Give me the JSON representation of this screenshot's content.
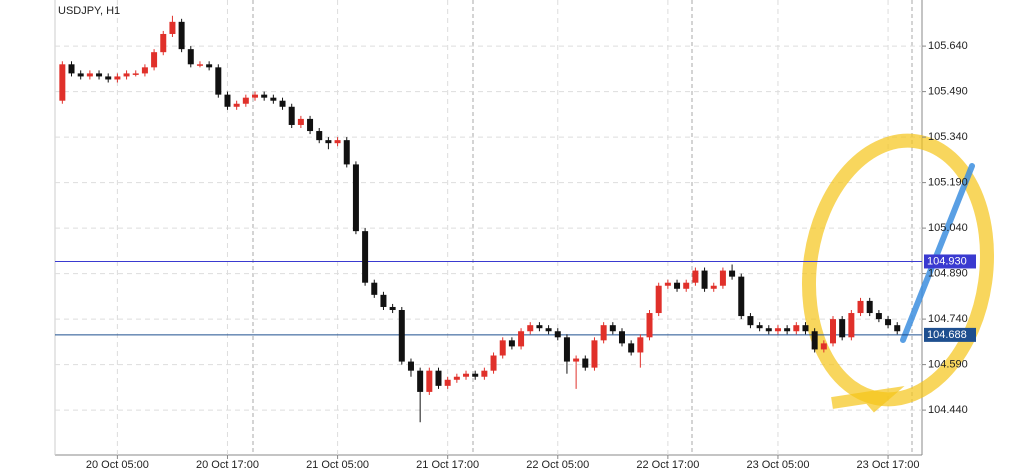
{
  "chart_data": {
    "type": "candlestick",
    "title": "USDJPY, H1",
    "x": [
      0,
      1,
      2,
      3,
      4,
      5,
      6,
      7,
      8,
      9,
      10,
      11,
      12,
      13,
      14,
      15,
      16,
      17,
      18,
      19,
      20,
      21,
      22,
      23,
      24,
      25,
      26,
      27,
      28,
      29,
      30,
      31,
      32,
      33,
      34,
      35,
      36,
      37,
      38,
      39,
      40,
      41,
      42,
      43,
      44,
      45,
      46,
      47,
      48,
      49,
      50,
      51,
      52,
      53,
      54,
      55,
      56,
      57,
      58,
      59,
      60,
      61,
      62,
      63,
      64,
      65,
      66,
      67,
      68,
      69,
      70,
      71,
      72,
      73,
      74,
      75,
      76,
      77,
      78,
      79,
      80,
      81,
      82,
      83,
      84,
      85,
      86,
      87,
      88,
      89,
      90,
      91
    ],
    "open": [
      105.46,
      105.58,
      105.55,
      105.54,
      105.55,
      105.54,
      105.53,
      105.54,
      105.55,
      105.55,
      105.57,
      105.62,
      105.68,
      105.72,
      105.63,
      105.58,
      105.58,
      105.57,
      105.48,
      105.44,
      105.45,
      105.47,
      105.48,
      105.47,
      105.46,
      105.44,
      105.38,
      105.4,
      105.36,
      105.33,
      105.32,
      105.33,
      105.25,
      105.03,
      104.86,
      104.82,
      104.78,
      104.77,
      104.6,
      104.57,
      104.5,
      104.57,
      104.52,
      104.54,
      104.55,
      104.56,
      104.55,
      104.57,
      104.62,
      104.67,
      104.65,
      104.7,
      104.72,
      104.71,
      104.7,
      104.68,
      104.6,
      104.61,
      104.58,
      104.67,
      104.72,
      104.7,
      104.66,
      104.63,
      104.68,
      104.76,
      104.85,
      104.86,
      104.84,
      104.86,
      104.9,
      104.84,
      104.85,
      104.9,
      104.88,
      104.75,
      104.72,
      104.71,
      104.7,
      104.71,
      104.7,
      104.72,
      104.7,
      104.64,
      104.66,
      104.74,
      104.68,
      104.76,
      104.8,
      104.76,
      104.74,
      104.72
    ],
    "high": [
      105.59,
      105.59,
      105.56,
      105.56,
      105.56,
      105.55,
      105.55,
      105.56,
      105.56,
      105.58,
      105.63,
      105.69,
      105.74,
      105.73,
      105.64,
      105.59,
      105.59,
      105.58,
      105.49,
      105.46,
      105.48,
      105.49,
      105.49,
      105.48,
      105.47,
      105.45,
      105.41,
      105.41,
      105.37,
      105.34,
      105.34,
      105.34,
      105.26,
      105.04,
      104.87,
      104.83,
      104.79,
      104.78,
      104.61,
      104.58,
      104.58,
      104.58,
      104.55,
      104.56,
      104.57,
      104.57,
      104.58,
      104.63,
      104.68,
      104.68,
      104.71,
      104.73,
      104.73,
      104.72,
      104.71,
      104.69,
      104.62,
      104.62,
      104.68,
      104.73,
      104.73,
      104.71,
      104.67,
      104.69,
      104.77,
      104.86,
      104.87,
      104.87,
      104.87,
      104.91,
      104.91,
      104.86,
      104.91,
      104.92,
      104.89,
      104.76,
      104.73,
      104.72,
      104.72,
      104.72,
      104.73,
      104.73,
      104.71,
      104.67,
      104.75,
      104.75,
      104.77,
      104.81,
      104.81,
      104.77,
      104.75,
      104.73
    ],
    "low": [
      105.45,
      105.54,
      105.53,
      105.53,
      105.53,
      105.52,
      105.52,
      105.53,
      105.54,
      105.54,
      105.56,
      105.61,
      105.67,
      105.62,
      105.57,
      105.57,
      105.56,
      105.47,
      105.43,
      105.43,
      105.44,
      105.46,
      105.46,
      105.45,
      105.43,
      105.37,
      105.37,
      105.35,
      105.32,
      105.3,
      105.31,
      105.24,
      105.02,
      104.85,
      104.81,
      104.77,
      104.76,
      104.59,
      104.55,
      104.4,
      104.49,
      104.51,
      104.51,
      104.53,
      104.54,
      104.54,
      104.54,
      104.56,
      104.61,
      104.64,
      104.64,
      104.69,
      104.7,
      104.69,
      104.67,
      104.56,
      104.51,
      104.57,
      104.57,
      104.66,
      104.69,
      104.65,
      104.62,
      104.58,
      104.67,
      104.75,
      104.84,
      104.83,
      104.83,
      104.85,
      104.83,
      104.83,
      104.84,
      104.87,
      104.74,
      104.71,
      104.7,
      104.69,
      104.69,
      104.69,
      104.69,
      104.69,
      104.63,
      104.63,
      104.65,
      104.67,
      104.67,
      104.75,
      104.75,
      104.73,
      104.71,
      104.69
    ],
    "close": [
      105.58,
      105.55,
      105.54,
      105.55,
      105.54,
      105.53,
      105.54,
      105.55,
      105.55,
      105.57,
      105.62,
      105.68,
      105.72,
      105.63,
      105.58,
      105.58,
      105.57,
      105.48,
      105.44,
      105.45,
      105.47,
      105.48,
      105.47,
      105.46,
      105.44,
      105.38,
      105.4,
      105.36,
      105.33,
      105.32,
      105.33,
      105.25,
      105.03,
      104.86,
      104.82,
      104.78,
      104.77,
      104.6,
      104.57,
      104.5,
      104.57,
      104.52,
      104.54,
      104.55,
      104.56,
      104.55,
      104.57,
      104.62,
      104.67,
      104.65,
      104.7,
      104.72,
      104.71,
      104.7,
      104.68,
      104.6,
      104.61,
      104.58,
      104.67,
      104.72,
      104.7,
      104.66,
      104.63,
      104.68,
      104.76,
      104.85,
      104.86,
      104.84,
      104.86,
      104.9,
      104.84,
      104.85,
      104.9,
      104.88,
      104.75,
      104.72,
      104.71,
      104.7,
      104.71,
      104.7,
      104.72,
      104.7,
      104.64,
      104.66,
      104.74,
      104.68,
      104.76,
      104.8,
      104.76,
      104.74,
      104.72,
      104.7
    ],
    "up_color": "#e0302a",
    "down_color": "#111111",
    "xlim": [
      -0.8,
      93.7
    ],
    "xticks": [
      {
        "value": 6,
        "label": "20 Oct 05:00"
      },
      {
        "value": 18,
        "label": "20 Oct 17:00"
      },
      {
        "value": 30,
        "label": "21 Oct 05:00"
      },
      {
        "value": 42,
        "label": "21 Oct 17:00"
      },
      {
        "value": 54,
        "label": "22 Oct 05:00"
      },
      {
        "value": 66,
        "label": "22 Oct 17:00"
      },
      {
        "value": 78,
        "label": "23 Oct 05:00"
      },
      {
        "value": 90,
        "label": "23 Oct 17:00"
      }
    ],
    "ylim": [
      104.292,
      105.792
    ],
    "yticks": [
      {
        "value": 104.44,
        "label": "104.440"
      },
      {
        "value": 104.59,
        "label": "104.590"
      },
      {
        "value": 104.74,
        "label": "104.740"
      },
      {
        "value": 104.89,
        "label": "104.890"
      },
      {
        "value": 105.04,
        "label": "105.040"
      },
      {
        "value": 105.19,
        "label": "105.190"
      },
      {
        "value": 105.34,
        "label": "105.340"
      },
      {
        "value": 105.49,
        "label": "105.490"
      },
      {
        "value": 105.64,
        "label": "105.640"
      }
    ],
    "hlines": [
      {
        "value": 104.93,
        "label": "104.930",
        "color": "#3a3ad0"
      },
      {
        "value": 104.688,
        "label": "104.688",
        "color": "#1e4f8f"
      }
    ],
    "grid": true
  }
}
